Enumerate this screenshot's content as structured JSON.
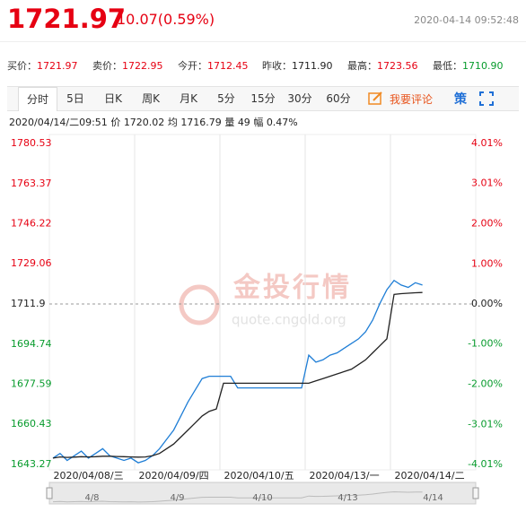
{
  "header": {
    "price": "1721.97",
    "change": "10.07(0.59%)",
    "time": "2020-04-14 09:52:48"
  },
  "quotes": [
    {
      "label": "买价：",
      "value": "1721.97"
    },
    {
      "label": "卖价：",
      "value": "1722.95"
    },
    {
      "label": "今开：",
      "value": "1712.45"
    },
    {
      "label": "昨收：",
      "value": "1711.90"
    },
    {
      "label": "最高：",
      "value": "1723.56"
    },
    {
      "label": "最低：",
      "value": "1710.90"
    }
  ],
  "tabs": [
    "分时",
    "5日",
    "日K",
    "周K",
    "月K",
    "5分",
    "15分",
    "30分",
    "60分"
  ],
  "comment": "我要评论",
  "strategy": "策",
  "info": {
    "time": "2020/04/14/二09:51",
    "price_label": "价",
    "price": "1720.02",
    "avg_label": "均",
    "avg": "1716.79",
    "vol_label": "量",
    "vol": "49",
    "amp_label": "幅",
    "amp": "0.47%"
  },
  "watermark": {
    "text": "金投行情",
    "url": "quote.cngold.org"
  },
  "chart_data": {
    "type": "line",
    "categories": [
      null,
      null,
      null,
      null,
      null,
      "2020/04/08/三",
      null,
      null,
      null,
      null,
      null,
      null,
      null,
      null,
      null,
      null,
      null,
      "2020/04/09/四",
      null,
      null,
      null,
      null,
      null,
      null,
      null,
      null,
      null,
      null,
      null,
      "2020/04/10/五",
      null,
      null,
      null,
      null,
      null,
      null,
      null,
      null,
      null,
      null,
      null,
      "2020/04/13/一",
      null,
      null,
      null,
      null,
      null,
      null,
      null,
      null,
      null,
      null,
      null,
      "2020/04/14/二",
      null,
      null,
      null,
      null,
      null,
      null
    ],
    "series": [
      {
        "color": "#1f7ed6",
        "values": [
          1646,
          1648,
          1645,
          1647,
          1649,
          1646,
          1648,
          1650,
          1647,
          1646,
          1645,
          1646,
          1644,
          1645,
          1647,
          1650,
          1654,
          1658,
          1664,
          1670,
          1675,
          1680,
          1681,
          1681,
          1681,
          1681,
          1676,
          1676,
          1676,
          1676,
          1676,
          1676,
          1676,
          1676,
          1676,
          1676,
          1690,
          1687,
          1688,
          1690,
          1691,
          1693,
          1695,
          1697,
          1700,
          1705,
          1712,
          1718,
          1722,
          1720,
          1719,
          1721,
          1720,
          null,
          null,
          null,
          null,
          null,
          null,
          null
        ]
      },
      {
        "color": "#222222",
        "values": [
          1646,
          1646.5,
          1646.3,
          1646.4,
          1646.6,
          1646.5,
          1646.6,
          1646.8,
          1646.8,
          1646.7,
          1646.6,
          1646.5,
          1646.4,
          1646.5,
          1647,
          1648,
          1650,
          1652,
          1655,
          1658,
          1661,
          1664,
          1666,
          1667,
          1678,
          1678,
          1678,
          1678,
          1678,
          1678,
          1678,
          1678,
          1678,
          1678,
          1678,
          1678,
          1678,
          1679,
          1680,
          1681,
          1682,
          1683,
          1684,
          1686,
          1688,
          1691,
          1694,
          1697,
          1716,
          1716.3,
          1716.5,
          1716.7,
          1716.79,
          null,
          null,
          null,
          null,
          null,
          null,
          null
        ]
      }
    ],
    "ylim": [
      1643.27,
      1780.53
    ],
    "yticks": [
      1780.53,
      1763.37,
      1746.22,
      1729.06,
      1711.9,
      1694.74,
      1677.59,
      1660.43,
      1643.27
    ],
    "base": 1711.9,
    "y2lim": [
      -4.01,
      4.01
    ],
    "y2ticks": [
      {
        "value": 4.01,
        "label": "4.01%"
      },
      {
        "value": 3.01,
        "label": "3.01%"
      },
      {
        "value": 2.0,
        "label": "2.00%"
      },
      {
        "value": 1.0,
        "label": "1.00%"
      },
      {
        "value": 0,
        "label": "0.00%"
      },
      {
        "value": -1.0,
        "label": "-1.00%"
      },
      {
        "value": -2.0,
        "label": "-2.00%"
      },
      {
        "value": -3.01,
        "label": "-3.01%"
      },
      {
        "value": -4.01,
        "label": "-4.01%"
      }
    ],
    "up_color": "#e60012",
    "down_color": "#079b2c",
    "grid": true,
    "navigator_labels": [
      "4/8",
      "4/9",
      "4/10",
      "4/13",
      "4/14"
    ]
  }
}
